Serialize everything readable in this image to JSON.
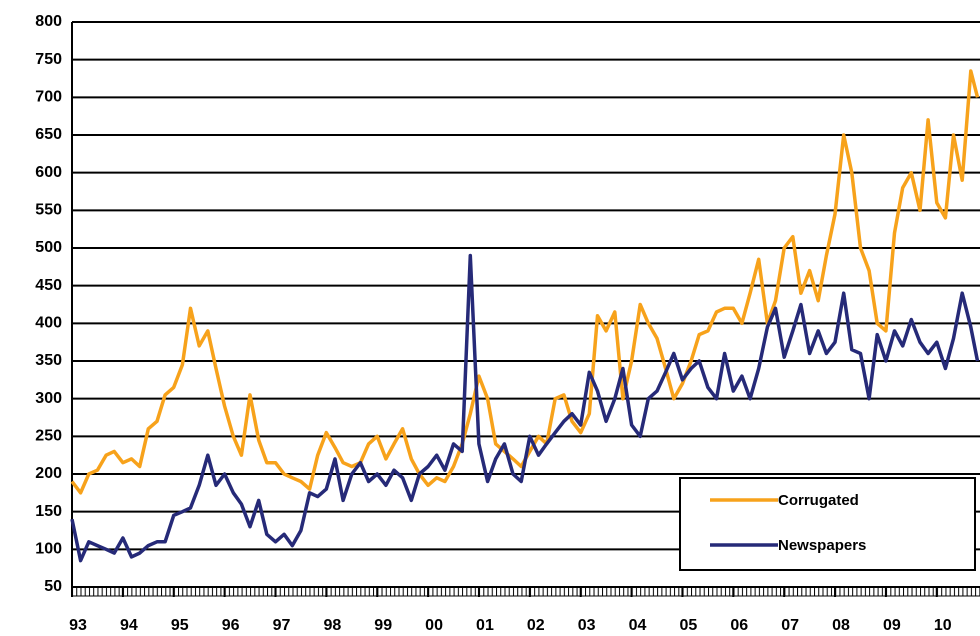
{
  "chart_data": {
    "type": "line",
    "x": [
      1993,
      1993.17,
      1993.33,
      1993.5,
      1993.67,
      1993.83,
      1994,
      1994.17,
      1994.33,
      1994.5,
      1994.67,
      1994.83,
      1995,
      1995.17,
      1995.33,
      1995.5,
      1995.67,
      1995.83,
      1996,
      1996.17,
      1996.33,
      1996.5,
      1996.67,
      1996.83,
      1997,
      1997.17,
      1997.33,
      1997.5,
      1997.67,
      1997.83,
      1998,
      1998.17,
      1998.33,
      1998.5,
      1998.67,
      1998.83,
      1999,
      1999.17,
      1999.33,
      1999.5,
      1999.67,
      1999.83,
      2000,
      2000.17,
      2000.33,
      2000.5,
      2000.67,
      2000.83,
      2001,
      2001.17,
      2001.33,
      2001.5,
      2001.67,
      2001.83,
      2002,
      2002.17,
      2002.33,
      2002.5,
      2002.67,
      2002.83,
      2003,
      2003.17,
      2003.33,
      2003.5,
      2003.67,
      2003.83,
      2004,
      2004.17,
      2004.33,
      2004.5,
      2004.67,
      2004.83,
      2005,
      2005.17,
      2005.33,
      2005.5,
      2005.67,
      2005.83,
      2006,
      2006.17,
      2006.33,
      2006.5,
      2006.67,
      2006.83,
      2007,
      2007.17,
      2007.33,
      2007.5,
      2007.67,
      2007.83,
      2008,
      2008.17,
      2008.33,
      2008.5,
      2008.67,
      2008.83,
      2009,
      2009.17,
      2009.33,
      2009.5,
      2009.67,
      2009.83,
      2010,
      2010.17,
      2010.33,
      2010.5,
      2010.67,
      2010.8
    ],
    "series": [
      {
        "name": "Corrugated",
        "color": "#f7a21b",
        "values": [
          190,
          175,
          200,
          205,
          225,
          230,
          215,
          220,
          210,
          260,
          270,
          305,
          315,
          345,
          420,
          370,
          390,
          340,
          290,
          250,
          225,
          305,
          245,
          215,
          215,
          200,
          195,
          190,
          180,
          225,
          255,
          235,
          215,
          210,
          215,
          240,
          250,
          220,
          240,
          260,
          220,
          200,
          185,
          195,
          190,
          210,
          240,
          280,
          330,
          300,
          240,
          230,
          220,
          210,
          230,
          250,
          240,
          300,
          305,
          270,
          255,
          280,
          410,
          390,
          415,
          300,
          350,
          425,
          400,
          380,
          340,
          300,
          320,
          350,
          385,
          390,
          415,
          420,
          420,
          400,
          440,
          485,
          400,
          430,
          500,
          515,
          440,
          470,
          430,
          490,
          545,
          650,
          600,
          500,
          470,
          400,
          390,
          520,
          580,
          600,
          550,
          670,
          560,
          540,
          650,
          590,
          735,
          700
        ]
      },
      {
        "name": "Newspapers",
        "color": "#262a78",
        "values": [
          140,
          85,
          110,
          105,
          100,
          95,
          115,
          90,
          95,
          105,
          110,
          110,
          145,
          150,
          155,
          185,
          225,
          185,
          200,
          175,
          160,
          130,
          165,
          120,
          110,
          120,
          105,
          125,
          175,
          170,
          180,
          220,
          165,
          200,
          215,
          190,
          200,
          185,
          205,
          195,
          165,
          200,
          210,
          225,
          205,
          240,
          230,
          490,
          240,
          190,
          220,
          240,
          200,
          190,
          250,
          225,
          240,
          255,
          270,
          280,
          265,
          335,
          310,
          270,
          300,
          340,
          265,
          250,
          300,
          310,
          335,
          360,
          325,
          340,
          350,
          315,
          300,
          360,
          310,
          330,
          300,
          340,
          395,
          420,
          355,
          390,
          425,
          360,
          390,
          360,
          375,
          440,
          365,
          360,
          300,
          385,
          350,
          390,
          370,
          405,
          375,
          360,
          375,
          340,
          380,
          440,
          395,
          350
        ]
      }
    ],
    "xlim": [
      1993,
      2010.85
    ],
    "xticks": [
      {
        "value": 1993,
        "label": "93"
      },
      {
        "value": 1994,
        "label": "94"
      },
      {
        "value": 1995,
        "label": "95"
      },
      {
        "value": 1996,
        "label": "96"
      },
      {
        "value": 1997,
        "label": "97"
      },
      {
        "value": 1998,
        "label": "98"
      },
      {
        "value": 1999,
        "label": "99"
      },
      {
        "value": 2000,
        "label": "00"
      },
      {
        "value": 2001,
        "label": "01"
      },
      {
        "value": 2002,
        "label": "02"
      },
      {
        "value": 2003,
        "label": "03"
      },
      {
        "value": 2004,
        "label": "04"
      },
      {
        "value": 2005,
        "label": "05"
      },
      {
        "value": 2006,
        "label": "06"
      },
      {
        "value": 2007,
        "label": "07"
      },
      {
        "value": 2008,
        "label": "08"
      },
      {
        "value": 2009,
        "label": "09"
      },
      {
        "value": 2010,
        "label": "10"
      }
    ],
    "ylim": [
      50,
      800
    ],
    "yticks": [
      50,
      100,
      150,
      200,
      250,
      300,
      350,
      400,
      450,
      500,
      550,
      600,
      650,
      700,
      750,
      800
    ],
    "grid": true,
    "legend": "lower right"
  }
}
